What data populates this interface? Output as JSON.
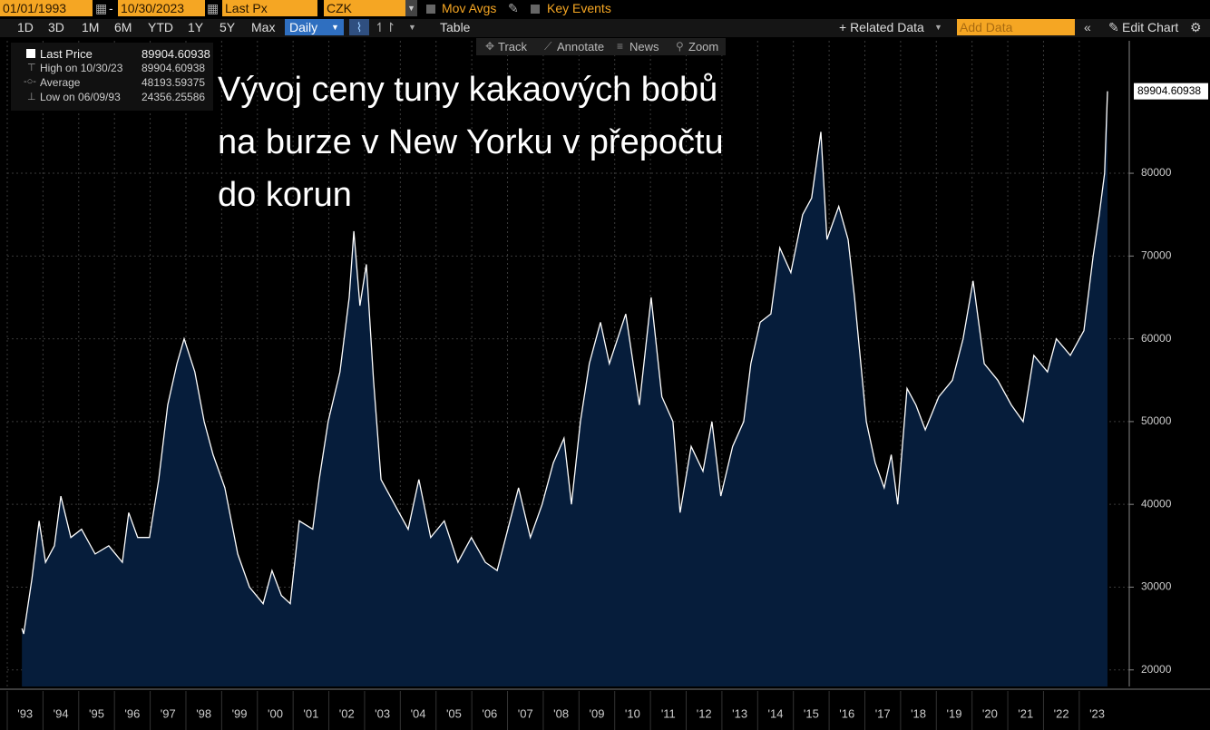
{
  "toolbar": {
    "start_date": "01/01/1993",
    "end_date": "10/30/2023",
    "field": "Last Px",
    "currency": "CZK",
    "mov_avgs": "Mov Avgs",
    "key_events": "Key Events",
    "periods": [
      "1D",
      "3D",
      "1M",
      "6M",
      "YTD",
      "1Y",
      "5Y",
      "Max"
    ],
    "frequency": "Daily",
    "table": "Table",
    "related_data": "+ Related Data",
    "add_data": "Add Data",
    "edit_chart": "Edit Chart",
    "tools": [
      "Track",
      "Annotate",
      "News",
      "Zoom"
    ]
  },
  "chart_data": {
    "type": "area",
    "title": [
      "Vývoj ceny tuny kakaových bobů",
      "na burze v New Yorku v přepočtu",
      "do korun"
    ],
    "stats": [
      {
        "label": "High on 10/30/23",
        "value": 89904.60938
      },
      {
        "label": "Average",
        "value": 48193.59375
      },
      {
        "label": "Low on 06/09/93",
        "value": 24356.25586
      }
    ],
    "x": [
      1993.41,
      1993.46,
      1993.69,
      1993.89,
      1994.07,
      1994.32,
      1994.5,
      1994.78,
      1995.08,
      1995.46,
      1995.84,
      1996.22,
      1996.4,
      1996.65,
      1996.98,
      1997.24,
      1997.49,
      1997.75,
      1997.95,
      1998.25,
      1998.51,
      1998.76,
      1999.09,
      1999.45,
      1999.78,
      2000.16,
      2000.41,
      2000.67,
      2000.92,
      2001.17,
      2001.55,
      2001.73,
      2001.98,
      2002.31,
      2002.57,
      2002.7,
      2002.87,
      2003.05,
      2003.25,
      2003.46,
      2003.84,
      2004.22,
      2004.52,
      2004.85,
      2005.23,
      2005.61,
      2005.99,
      2006.38,
      2006.71,
      2007.01,
      2007.31,
      2007.64,
      2007.97,
      2008.28,
      2008.58,
      2008.79,
      2009.04,
      2009.29,
      2009.6,
      2009.85,
      2010.31,
      2010.69,
      2011.02,
      2011.32,
      2011.63,
      2011.83,
      2012.14,
      2012.47,
      2012.72,
      2012.97,
      2013.3,
      2013.61,
      2013.81,
      2014.07,
      2014.37,
      2014.62,
      2014.93,
      2015.26,
      2015.51,
      2015.77,
      2015.94,
      2016.27,
      2016.53,
      2016.71,
      2017.04,
      2017.29,
      2017.54,
      2017.74,
      2017.92,
      2018.18,
      2018.43,
      2018.69,
      2019.07,
      2019.45,
      2019.75,
      2020.03,
      2020.34,
      2020.72,
      2021.1,
      2021.43,
      2021.73,
      2022.11,
      2022.36,
      2022.75,
      2023.13,
      2023.39,
      2023.56,
      2023.71,
      2023.79
    ],
    "series": [
      {
        "name": "Last Price",
        "color": "#ffffff",
        "fill": "#061d3b",
        "values": [
          25000,
          24356.25586,
          31000,
          38000,
          33000,
          35000,
          41000,
          36000,
          37000,
          34000,
          35000,
          33000,
          39000,
          36000,
          36000,
          43000,
          52000,
          57000,
          60000,
          56000,
          50000,
          46000,
          42000,
          34000,
          30000,
          28000,
          32000,
          29000,
          28000,
          38000,
          37000,
          43000,
          50000,
          56000,
          65000,
          73000,
          64000,
          69000,
          55000,
          43000,
          40000,
          37000,
          43000,
          36000,
          38000,
          33000,
          36000,
          33000,
          32000,
          37000,
          42000,
          36000,
          40000,
          45000,
          48000,
          40000,
          50000,
          57000,
          62000,
          57000,
          63000,
          52000,
          65000,
          53000,
          50000,
          39000,
          47000,
          44000,
          50000,
          41000,
          47000,
          50000,
          57000,
          62000,
          63000,
          71000,
          68000,
          75000,
          77000,
          85000,
          72000,
          76000,
          72000,
          65000,
          50000,
          45000,
          42000,
          46000,
          40000,
          54000,
          52000,
          49000,
          53000,
          55000,
          60000,
          67000,
          57000,
          55000,
          52000,
          50000,
          58000,
          56000,
          60000,
          58000,
          61000,
          70000,
          75000,
          80000,
          89904.60938
        ]
      }
    ],
    "xlim": [
      1993,
      2024.4
    ],
    "xticks": [
      {
        "value": 1993,
        "label": "'93"
      },
      {
        "value": 1994,
        "label": "'94"
      },
      {
        "value": 1995,
        "label": "'95"
      },
      {
        "value": 1996,
        "label": "'96"
      },
      {
        "value": 1997,
        "label": "'97"
      },
      {
        "value": 1998,
        "label": "'98"
      },
      {
        "value": 1999,
        "label": "'99"
      },
      {
        "value": 2000,
        "label": "'00"
      },
      {
        "value": 2001,
        "label": "'01"
      },
      {
        "value": 2002,
        "label": "'02"
      },
      {
        "value": 2003,
        "label": "'03"
      },
      {
        "value": 2004,
        "label": "'04"
      },
      {
        "value": 2005,
        "label": "'05"
      },
      {
        "value": 2006,
        "label": "'06"
      },
      {
        "value": 2007,
        "label": "'07"
      },
      {
        "value": 2008,
        "label": "'08"
      },
      {
        "value": 2009,
        "label": "'09"
      },
      {
        "value": 2010,
        "label": "'10"
      },
      {
        "value": 2011,
        "label": "'11"
      },
      {
        "value": 2012,
        "label": "'12"
      },
      {
        "value": 2013,
        "label": "'13"
      },
      {
        "value": 2014,
        "label": "'14"
      },
      {
        "value": 2015,
        "label": "'15"
      },
      {
        "value": 2016,
        "label": "'16"
      },
      {
        "value": 2017,
        "label": "'17"
      },
      {
        "value": 2018,
        "label": "'18"
      },
      {
        "value": 2019,
        "label": "'19"
      },
      {
        "value": 2020,
        "label": "'20"
      },
      {
        "value": 2021,
        "label": "'21"
      },
      {
        "value": 2022,
        "label": "'22"
      },
      {
        "value": 2023,
        "label": "'23"
      }
    ],
    "ylim": [
      18000,
      96000
    ],
    "yticks": [
      20000,
      30000,
      40000,
      50000,
      60000,
      70000,
      80000
    ],
    "grid": true
  }
}
